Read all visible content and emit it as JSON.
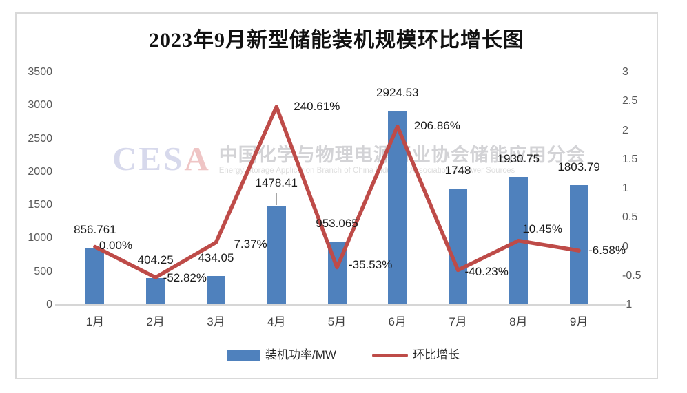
{
  "chart_data": {
    "type": "combo-bar-line",
    "title": "2023年9月新型储能装机规模环比增长图",
    "categories": [
      "1月",
      "2月",
      "3月",
      "4月",
      "5月",
      "6月",
      "7月",
      "8月",
      "9月"
    ],
    "series": [
      {
        "name": "装机功率/MW",
        "type": "bar",
        "axis": "left",
        "color": "#4F81BD",
        "values": [
          856.761,
          404.25,
          434.05,
          1478.41,
          953.065,
          2924.53,
          1748,
          1930.75,
          1803.79
        ],
        "labels": [
          "856.761",
          "404.25",
          "434.05",
          "1478.41",
          "953.065",
          "2924.53",
          "1748",
          "1930.75",
          "1803.79"
        ]
      },
      {
        "name": "环比增长",
        "type": "line",
        "axis": "right",
        "color": "#BE4B48",
        "values": [
          0.0,
          -0.5282,
          0.0737,
          2.4061,
          -0.3553,
          2.0686,
          -0.4023,
          0.1045,
          -0.0658
        ],
        "labels": [
          "0.00%",
          "-52.82%",
          "7.37%",
          "240.61%",
          "-35.53%",
          "206.86%",
          "-40.23%",
          "10.45%",
          "-6.58%"
        ]
      }
    ],
    "left_axis": {
      "min": 0,
      "max": 3500,
      "ticks": [
        "3500",
        "3000",
        "2500",
        "2000",
        "1500",
        "1000",
        "500",
        "0"
      ]
    },
    "right_axis": {
      "min": -1,
      "max": 3,
      "ticks": [
        "3",
        "2.5",
        "2",
        "1.5",
        "1",
        "0.5",
        "0",
        "-0.5",
        "-1"
      ]
    },
    "legend_position": "bottom",
    "grid": false
  },
  "watermark": {
    "logo_blue": "CES",
    "logo_red": "A",
    "cn": "中国化学与物理电源行业协会储能应用分会",
    "en": "Energy Storage Application Branch of China Industrial Association of Power Sources"
  }
}
